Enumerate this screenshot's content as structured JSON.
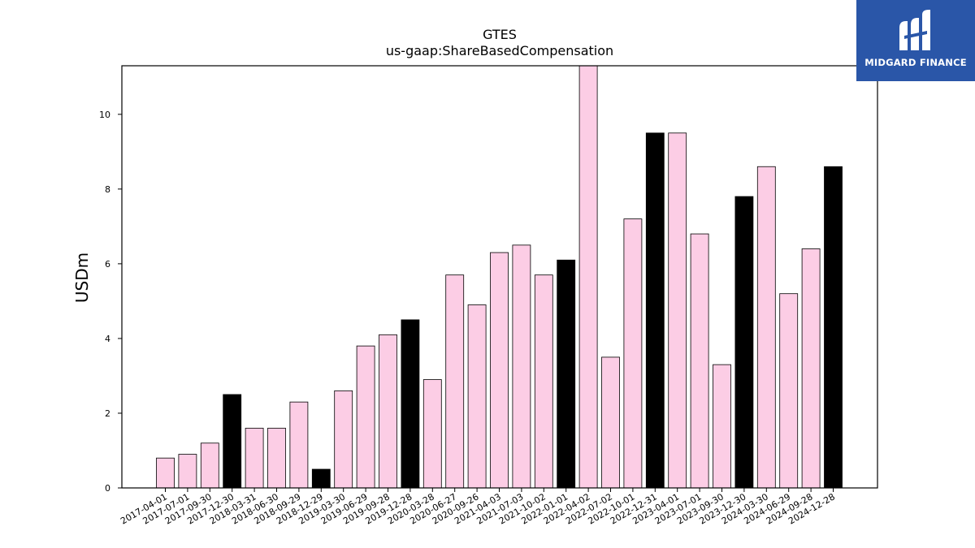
{
  "chart_data": {
    "type": "bar",
    "title": "GTES",
    "subtitle": "us-gaap:ShareBasedCompensation",
    "xlabel": "",
    "ylabel": "USDm",
    "ylim": [
      0,
      11.3
    ],
    "yticks": [
      0,
      2,
      4,
      6,
      8,
      10
    ],
    "grid": false,
    "categories": [
      "2017-04-01",
      "2017-07-01",
      "2017-09-30",
      "2017-12-30",
      "2018-03-31",
      "2018-06-30",
      "2018-09-29",
      "2018-12-29",
      "2019-03-30",
      "2019-06-29",
      "2019-09-28",
      "2019-12-28",
      "2020-03-28",
      "2020-06-27",
      "2020-09-26",
      "2021-04-03",
      "2021-07-03",
      "2021-10-02",
      "2022-01-01",
      "2022-04-02",
      "2022-07-02",
      "2022-10-01",
      "2022-12-31",
      "2023-04-01",
      "2023-07-01",
      "2023-09-30",
      "2023-12-30",
      "2024-03-30",
      "2024-06-29",
      "2024-09-28",
      "2024-12-28"
    ],
    "values": [
      0.8,
      0.9,
      1.2,
      2.5,
      1.6,
      1.6,
      2.3,
      0.5,
      2.6,
      3.8,
      4.1,
      4.5,
      2.9,
      5.7,
      4.9,
      6.3,
      6.5,
      5.7,
      6.1,
      11.4,
      3.5,
      7.2,
      9.5,
      9.5,
      6.8,
      3.3,
      7.8,
      8.6,
      5.2,
      6.4,
      8.6
    ],
    "highlight": [
      false,
      false,
      false,
      true,
      false,
      false,
      false,
      true,
      false,
      false,
      false,
      true,
      false,
      false,
      false,
      false,
      false,
      false,
      true,
      false,
      false,
      false,
      true,
      false,
      false,
      false,
      true,
      false,
      false,
      false,
      true
    ],
    "colors": {
      "bar": "#fccde5",
      "highlight": "#000000",
      "edge": "#000000"
    }
  },
  "logo": {
    "text": "MIDGARD FINANCE",
    "background": "#2a56a8"
  }
}
